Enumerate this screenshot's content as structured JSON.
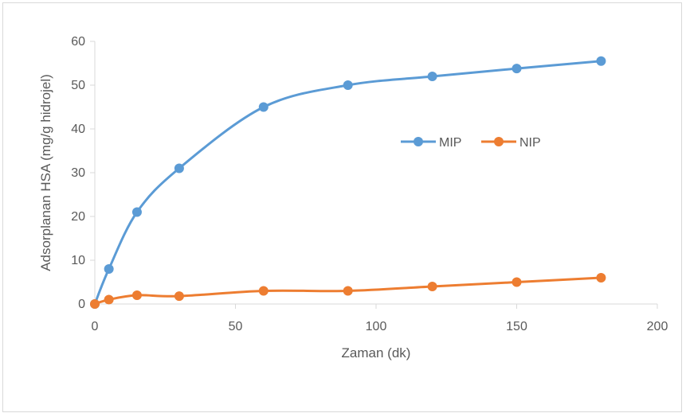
{
  "chart_data": {
    "type": "line",
    "title": "",
    "xlabel": "Zaman (dk)",
    "ylabel": "Adsorplanan HSA (mg/g hidrojel)",
    "xlim": [
      0,
      200
    ],
    "ylim": [
      0,
      60
    ],
    "xticks": [
      0,
      50,
      100,
      150,
      200
    ],
    "yticks": [
      0,
      10,
      20,
      30,
      40,
      50,
      60
    ],
    "xtick_labels": [
      "0",
      "50",
      "100",
      "150",
      "200"
    ],
    "ytick_labels": [
      "0",
      "10",
      "20",
      "30",
      "40",
      "50",
      "60"
    ],
    "grid": false,
    "legend_position": "inside-right",
    "x": [
      0,
      5,
      15,
      30,
      60,
      90,
      120,
      150,
      180
    ],
    "series": [
      {
        "name": "MIP",
        "color": "#5b9bd5",
        "values": [
          0,
          8,
          21,
          31,
          45,
          50,
          52,
          53.8,
          55.5
        ]
      },
      {
        "name": "NIP",
        "color": "#ed7d31",
        "values": [
          0,
          1,
          2,
          1.8,
          3,
          3,
          4,
          5,
          6
        ]
      }
    ]
  }
}
